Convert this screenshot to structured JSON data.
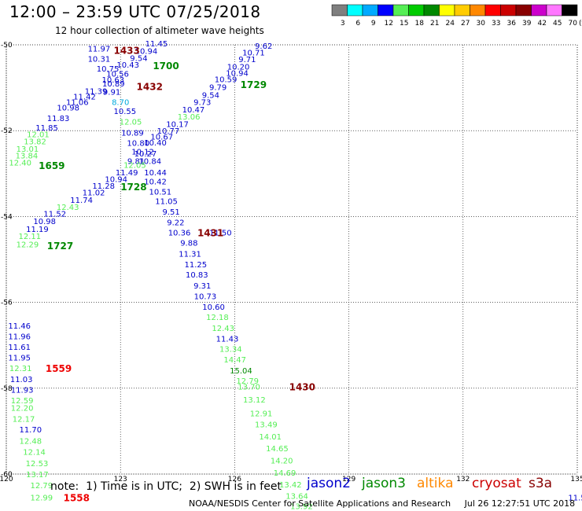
{
  "header": {
    "title": "12:00 – 23:59 UTC 07/25/2018",
    "subtitle": "12 hour collection of altimeter wave heights"
  },
  "colorbar": {
    "colors": [
      "#7f7f7f",
      "#00ffff",
      "#00aaff",
      "#0000ff",
      "#55ee55",
      "#00cc00",
      "#008800",
      "#ffff00",
      "#ffcc00",
      "#ff8800",
      "#ff0000",
      "#cc0000",
      "#880000",
      "#cc00cc",
      "#ff77ff",
      "#000000"
    ],
    "labels": [
      "3",
      "6",
      "9",
      "12",
      "15",
      "18",
      "21",
      "24",
      "27",
      "30",
      "33",
      "36",
      "39",
      "42",
      "45",
      "70"
    ],
    "unit": "(ft)"
  },
  "footer": {
    "note": "note:  1) Time is in UTC;  2) SWH is in feet",
    "credit": "NOAA/NESDIS Center for Satellite Applications and Research     Jul 26 12:27:51 UTC 2018"
  },
  "legend": [
    {
      "name": "jason2",
      "color": "#0000cc"
    },
    {
      "name": "jason3",
      "color": "#008800"
    },
    {
      "name": "altika",
      "color": "#ff8800"
    },
    {
      "name": "cryosat",
      "color": "#cc0000"
    },
    {
      "name": "s3a",
      "color": "#880000"
    }
  ],
  "chart_data": {
    "type": "scatter",
    "title": "12 hour collection of altimeter wave heights",
    "x_ticks": [
      "120",
      "123",
      "126",
      "129",
      "132",
      "135"
    ],
    "y_ticks": [
      "-50",
      "-52",
      "-54",
      "-56",
      "-58",
      "-60"
    ],
    "xlim": [
      120,
      135
    ],
    "ylim": [
      -60,
      -50
    ],
    "grid": true,
    "units": "feet",
    "colors": {
      "lgreen": "#55ee55",
      "blue": "#0000cc",
      "cyan": "#00aadd",
      "dgreen": "#008800",
      "red": "#ee0000",
      "dred": "#880000"
    },
    "points": [
      {
        "t": "11.97",
        "x": 122.14,
        "y": -50.08,
        "c": "blue"
      },
      {
        "t": "11.45",
        "x": 123.65,
        "y": -49.96,
        "c": "blue"
      },
      {
        "t": "10.94",
        "x": 123.38,
        "y": -50.14,
        "c": "blue"
      },
      {
        "t": "9.54",
        "x": 123.25,
        "y": -50.3,
        "c": "blue"
      },
      {
        "t": "10.31",
        "x": 122.14,
        "y": -50.32,
        "c": "blue"
      },
      {
        "t": "10.43",
        "x": 122.9,
        "y": -50.46,
        "c": "blue"
      },
      {
        "t": "10.75",
        "x": 122.37,
        "y": -50.55,
        "c": "blue"
      },
      {
        "t": "10.56",
        "x": 122.63,
        "y": -50.67,
        "c": "blue"
      },
      {
        "t": "10.63",
        "x": 122.51,
        "y": -50.81,
        "c": "blue"
      },
      {
        "t": "10.89",
        "x": 122.52,
        "y": -50.9,
        "c": "blue"
      },
      {
        "t": "11.39",
        "x": 122.06,
        "y": -51.07,
        "c": "blue"
      },
      {
        "t": "9.91",
        "x": 122.54,
        "y": -51.09,
        "c": "blue"
      },
      {
        "t": "11.42",
        "x": 121.76,
        "y": -51.2,
        "c": "blue"
      },
      {
        "t": "8.70",
        "x": 122.77,
        "y": -51.33,
        "c": "cyan"
      },
      {
        "t": "11.06",
        "x": 121.57,
        "y": -51.33,
        "c": "blue"
      },
      {
        "t": "10.98",
        "x": 121.33,
        "y": -51.46,
        "c": "blue"
      },
      {
        "t": "10.55",
        "x": 122.82,
        "y": -51.54,
        "c": "blue"
      },
      {
        "t": "11.83",
        "x": 121.07,
        "y": -51.7,
        "c": "blue"
      },
      {
        "t": "12.05",
        "x": 122.97,
        "y": -51.79,
        "c": "lgreen"
      },
      {
        "t": "11.85",
        "x": 120.77,
        "y": -51.92,
        "c": "blue"
      },
      {
        "t": "12.01",
        "x": 120.54,
        "y": -52.08,
        "c": "lgreen"
      },
      {
        "t": "10.89",
        "x": 123.02,
        "y": -52.04,
        "c": "blue"
      },
      {
        "t": "13.82",
        "x": 120.46,
        "y": -52.24,
        "c": "lgreen"
      },
      {
        "t": "10.80",
        "x": 123.17,
        "y": -52.28,
        "c": "blue"
      },
      {
        "t": "13.01",
        "x": 120.26,
        "y": -52.42,
        "c": "lgreen"
      },
      {
        "t": "10.12",
        "x": 123.29,
        "y": -52.48,
        "c": "blue"
      },
      {
        "t": "13.84",
        "x": 120.24,
        "y": -52.57,
        "c": "lgreen"
      },
      {
        "t": "10.27",
        "x": 123.36,
        "y": -52.53,
        "c": "blue"
      },
      {
        "t": "9.81",
        "x": 123.18,
        "y": -52.7,
        "c": "blue"
      },
      {
        "t": "10.84",
        "x": 123.48,
        "y": -52.7,
        "c": "blue"
      },
      {
        "t": "12.40",
        "x": 120.07,
        "y": -52.74,
        "c": "lgreen"
      },
      {
        "t": "12.05",
        "x": 123.08,
        "y": -52.79,
        "c": "lgreen"
      },
      {
        "t": "11.49",
        "x": 122.87,
        "y": -52.97,
        "c": "blue"
      },
      {
        "t": "10.44",
        "x": 123.62,
        "y": -52.97,
        "c": "blue"
      },
      {
        "t": "10.94",
        "x": 122.59,
        "y": -53.12,
        "c": "blue"
      },
      {
        "t": "10.42",
        "x": 123.62,
        "y": -53.18,
        "c": "blue"
      },
      {
        "t": "11.28",
        "x": 122.26,
        "y": -53.28,
        "c": "blue"
      },
      {
        "t": "10.51",
        "x": 123.75,
        "y": -53.42,
        "c": "blue"
      },
      {
        "t": "11.02",
        "x": 122.0,
        "y": -53.43,
        "c": "blue"
      },
      {
        "t": "11.74",
        "x": 121.68,
        "y": -53.61,
        "c": "blue"
      },
      {
        "t": "11.05",
        "x": 123.91,
        "y": -53.64,
        "c": "blue"
      },
      {
        "t": "12.43",
        "x": 121.32,
        "y": -53.77,
        "c": "lgreen"
      },
      {
        "t": "11.52",
        "x": 120.98,
        "y": -53.93,
        "c": "blue"
      },
      {
        "t": "9.51",
        "x": 124.1,
        "y": -53.88,
        "c": "blue"
      },
      {
        "t": "10.98",
        "x": 120.71,
        "y": -54.1,
        "c": "blue"
      },
      {
        "t": "9.22",
        "x": 124.22,
        "y": -54.13,
        "c": "blue"
      },
      {
        "t": "11.19",
        "x": 120.52,
        "y": -54.29,
        "c": "blue"
      },
      {
        "t": "10.36",
        "x": 124.25,
        "y": -54.37,
        "c": "blue"
      },
      {
        "t": "12.11",
        "x": 120.32,
        "y": -54.45,
        "c": "lgreen"
      },
      {
        "t": "12.29",
        "x": 120.26,
        "y": -54.64,
        "c": "lgreen"
      },
      {
        "t": "9.88",
        "x": 124.57,
        "y": -54.61,
        "c": "blue"
      },
      {
        "t": "11.31",
        "x": 124.53,
        "y": -54.86,
        "c": "blue"
      },
      {
        "t": "11.25",
        "x": 124.68,
        "y": -55.11,
        "c": "blue"
      },
      {
        "t": "10.83",
        "x": 124.71,
        "y": -55.35,
        "c": "blue"
      },
      {
        "t": "9.31",
        "x": 124.92,
        "y": -55.6,
        "c": "blue"
      },
      {
        "t": "10.73",
        "x": 124.93,
        "y": -55.85,
        "c": "blue"
      },
      {
        "t": "10.60",
        "x": 125.15,
        "y": -56.1,
        "c": "blue"
      },
      {
        "t": "12.18",
        "x": 125.25,
        "y": -56.34,
        "c": "lgreen"
      },
      {
        "t": "12.43",
        "x": 125.4,
        "y": -56.59,
        "c": "lgreen"
      },
      {
        "t": "11.43",
        "x": 125.51,
        "y": -56.84,
        "c": "blue"
      },
      {
        "t": "13.34",
        "x": 125.6,
        "y": -57.08,
        "c": "lgreen"
      },
      {
        "t": "14.47",
        "x": 125.71,
        "y": -57.33,
        "c": "lgreen"
      },
      {
        "t": "15.04",
        "x": 125.87,
        "y": -57.58,
        "c": "dgreen"
      },
      {
        "t": "12.79",
        "x": 126.04,
        "y": -57.82,
        "c": "lgreen"
      },
      {
        "t": "13.70",
        "x": 126.08,
        "y": -57.96,
        "c": "lgreen"
      },
      {
        "t": "13.12",
        "x": 126.22,
        "y": -58.26,
        "c": "lgreen"
      },
      {
        "t": "12.91",
        "x": 126.4,
        "y": -58.58,
        "c": "lgreen"
      },
      {
        "t": "13.49",
        "x": 126.53,
        "y": -58.84,
        "c": "lgreen"
      },
      {
        "t": "14.01",
        "x": 126.64,
        "y": -59.12,
        "c": "lgreen"
      },
      {
        "t": "14.65",
        "x": 126.82,
        "y": -59.4,
        "c": "lgreen"
      },
      {
        "t": "14.20",
        "x": 126.94,
        "y": -59.68,
        "c": "lgreen"
      },
      {
        "t": "14.69",
        "x": 127.02,
        "y": -59.96,
        "c": "lgreen"
      },
      {
        "t": "13.42",
        "x": 127.17,
        "y": -60.24,
        "c": "lgreen"
      },
      {
        "t": "13.64",
        "x": 127.34,
        "y": -60.5,
        "c": "lgreen"
      },
      {
        "t": "13.92",
        "x": 127.46,
        "y": -60.74,
        "c": "lgreen"
      },
      {
        "t": "9.62",
        "x": 126.53,
        "y": -50.02,
        "c": "blue"
      },
      {
        "t": "10.71",
        "x": 126.2,
        "y": -50.17,
        "c": "blue"
      },
      {
        "t": "9.71",
        "x": 126.1,
        "y": -50.33,
        "c": "blue"
      },
      {
        "t": "10.20",
        "x": 125.8,
        "y": -50.5,
        "c": "blue"
      },
      {
        "t": "10.94",
        "x": 125.77,
        "y": -50.65,
        "c": "blue"
      },
      {
        "t": "10.59",
        "x": 125.47,
        "y": -50.8,
        "c": "blue"
      },
      {
        "t": "9.79",
        "x": 125.33,
        "y": -50.98,
        "c": "blue"
      },
      {
        "t": "9.54",
        "x": 125.14,
        "y": -51.16,
        "c": "blue"
      },
      {
        "t": "9.73",
        "x": 124.92,
        "y": -51.33,
        "c": "blue"
      },
      {
        "t": "10.47",
        "x": 124.62,
        "y": -51.5,
        "c": "blue"
      },
      {
        "t": "13.06",
        "x": 124.5,
        "y": -51.67,
        "c": "lgreen"
      },
      {
        "t": "10.17",
        "x": 124.2,
        "y": -51.84,
        "c": "blue"
      },
      {
        "t": "10.77",
        "x": 123.96,
        "y": -52.0,
        "c": "blue"
      },
      {
        "t": "10.67",
        "x": 123.79,
        "y": -52.13,
        "c": "blue"
      },
      {
        "t": "10.40",
        "x": 123.62,
        "y": -52.27,
        "c": "blue"
      },
      {
        "t": "11.50",
        "x": 125.33,
        "y": -54.37,
        "c": "blue"
      },
      {
        "t": "11.46",
        "x": 120.05,
        "y": -56.54,
        "c": "blue"
      },
      {
        "t": "11.96",
        "x": 120.05,
        "y": -56.79,
        "c": "blue"
      },
      {
        "t": "11.61",
        "x": 120.05,
        "y": -57.03,
        "c": "blue"
      },
      {
        "t": "11.95",
        "x": 120.05,
        "y": -57.28,
        "c": "blue"
      },
      {
        "t": "12.31",
        "x": 120.08,
        "y": -57.53,
        "c": "lgreen"
      },
      {
        "t": "11.03",
        "x": 120.1,
        "y": -57.78,
        "c": "blue"
      },
      {
        "t": "11.93",
        "x": 120.12,
        "y": -58.03,
        "c": "blue"
      },
      {
        "t": "12.59",
        "x": 120.12,
        "y": -58.28,
        "c": "lgreen"
      },
      {
        "t": "12.20",
        "x": 120.12,
        "y": -58.45,
        "c": "lgreen"
      },
      {
        "t": "12.17",
        "x": 120.16,
        "y": -58.71,
        "c": "lgreen"
      },
      {
        "t": "11.70",
        "x": 120.34,
        "y": -58.96,
        "c": "blue"
      },
      {
        "t": "12.48",
        "x": 120.34,
        "y": -59.22,
        "c": "lgreen"
      },
      {
        "t": "12.14",
        "x": 120.44,
        "y": -59.48,
        "c": "lgreen"
      },
      {
        "t": "12.53",
        "x": 120.51,
        "y": -59.74,
        "c": "lgreen"
      },
      {
        "t": "13.17",
        "x": 120.52,
        "y": -60.0,
        "c": "lgreen"
      },
      {
        "t": "12.79",
        "x": 120.63,
        "y": -60.26,
        "c": "lgreen"
      },
      {
        "t": "12.99",
        "x": 120.63,
        "y": -60.54,
        "c": "lgreen"
      },
      {
        "t": "11.5",
        "x": 134.76,
        "y": -60.54,
        "c": "blue"
      }
    ],
    "times": [
      {
        "t": "1433",
        "x": 122.82,
        "y": -50.12,
        "c": "dred"
      },
      {
        "t": "1700",
        "x": 123.85,
        "y": -50.48,
        "c": "dgreen"
      },
      {
        "t": "1432",
        "x": 123.42,
        "y": -50.96,
        "c": "dred"
      },
      {
        "t": "1729",
        "x": 126.15,
        "y": -50.92,
        "c": "dgreen"
      },
      {
        "t": "1659",
        "x": 120.85,
        "y": -52.8,
        "c": "dgreen"
      },
      {
        "t": "1728",
        "x": 123.0,
        "y": -53.3,
        "c": "dgreen"
      },
      {
        "t": "1431",
        "x": 125.02,
        "y": -54.37,
        "c": "dred"
      },
      {
        "t": "1727",
        "x": 121.07,
        "y": -54.67,
        "c": "dgreen"
      },
      {
        "t": "1559",
        "x": 121.03,
        "y": -57.53,
        "c": "red"
      },
      {
        "t": "1430",
        "x": 127.43,
        "y": -57.96,
        "c": "dred"
      },
      {
        "t": "1558",
        "x": 121.5,
        "y": -60.54,
        "c": "red"
      }
    ]
  }
}
